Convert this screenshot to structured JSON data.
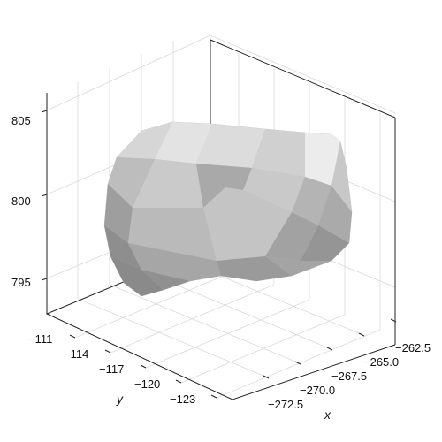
{
  "chart_data": {
    "type": "surface3d",
    "title": "",
    "xlabel": "x",
    "ylabel": "y",
    "zlabel": "",
    "x_ticks": [
      "−272.5",
      "−270.0",
      "−267.5",
      "−265.0",
      "−262.5"
    ],
    "x_tick_values": [
      -272.5,
      -270.0,
      -267.5,
      -265.0,
      -262.5
    ],
    "y_ticks": [
      "−111",
      "−114",
      "−117",
      "−120",
      "−123"
    ],
    "y_tick_values": [
      -111,
      -114,
      -117,
      -120,
      -123
    ],
    "z_ticks": [
      "805",
      "800",
      "795"
    ],
    "z_tick_values": [
      805,
      800,
      795
    ],
    "xlim": [
      -274,
      -261
    ],
    "ylim": [
      -125,
      -109
    ],
    "zlim": [
      792,
      807
    ],
    "grid": true,
    "surface_color": "#bdbdbd",
    "description_of_mark": "single gray shaded closed triangulated mesh"
  }
}
